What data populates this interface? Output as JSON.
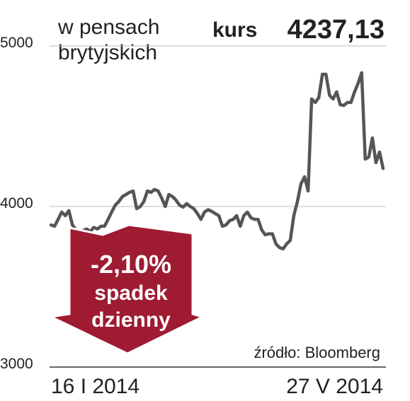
{
  "chart_data": {
    "type": "line",
    "unit_lines": [
      "w pensach",
      "brytyjskich"
    ],
    "price_label": "kurs",
    "price": "4237,13",
    "change": "-2,10%",
    "change_note": [
      "spadek",
      "dzienny"
    ],
    "source": "źródło: Bloomberg",
    "color": "#555555",
    "arrow_color": "#9e1b32",
    "grid": true,
    "ylim": [
      3000,
      5000
    ],
    "yticks": [
      3000,
      4000,
      5000
    ],
    "categories": [
      "16 I 2014",
      null,
      null,
      null,
      null,
      null,
      null,
      null,
      null,
      null,
      null,
      null,
      null,
      null,
      null,
      null,
      null,
      null,
      null,
      null,
      null,
      null,
      null,
      null,
      null,
      null,
      null,
      null,
      null,
      null,
      null,
      null,
      null,
      null,
      null,
      null,
      null,
      null,
      null,
      null,
      null,
      null,
      null,
      null,
      null,
      null,
      null,
      null,
      null,
      null,
      null,
      null,
      null,
      null,
      null,
      null,
      null,
      null,
      null,
      null,
      null,
      null,
      null,
      null,
      null,
      null,
      null,
      null,
      null,
      null,
      null,
      null,
      null,
      null,
      null,
      null,
      null,
      null,
      null,
      null,
      null,
      null,
      null,
      null,
      null,
      null,
      null,
      null,
      null,
      null,
      null,
      null,
      null,
      "27 V 2014"
    ],
    "values": [
      3885,
      3877,
      3920,
      3965,
      3943,
      3974,
      3885,
      3855,
      3840,
      3850,
      3860,
      3845,
      3870,
      3860,
      3877,
      3877,
      3920,
      3965,
      4009,
      4031,
      4062,
      4075,
      4088,
      4097,
      3987,
      4000,
      4031,
      4097,
      4088,
      4106,
      4097,
      4053,
      4000,
      4075,
      4062,
      4040,
      4009,
      3996,
      4018,
      4000,
      3987,
      3956,
      3920,
      3965,
      3980,
      3970,
      3956,
      3943,
      3877,
      3885,
      3912,
      3920,
      3943,
      3877,
      3943,
      3965,
      3930,
      3920,
      3920,
      3855,
      3824,
      3830,
      3830,
      3767,
      3744,
      3736,
      3767,
      3789,
      3943,
      4031,
      4141,
      4185,
      4097,
      4670,
      4648,
      4678,
      4824,
      4824,
      4692,
      4670,
      4714,
      4634,
      4630,
      4648,
      4648,
      4714,
      4767,
      4833,
      4295,
      4308,
      4427,
      4273,
      4339,
      4237
    ]
  }
}
